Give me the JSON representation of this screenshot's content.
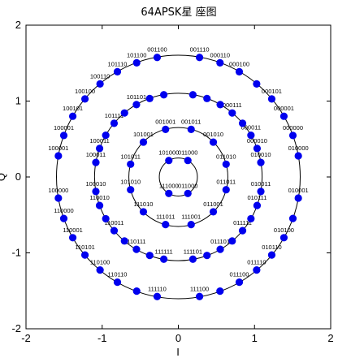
{
  "chart_data": {
    "type": "scatter",
    "title": "64APSK星 座图",
    "xlabel": "I",
    "ylabel": "Q",
    "xlim": [
      -2,
      2
    ],
    "ylim": [
      -2,
      2
    ],
    "xticks": [
      "-2",
      "-1",
      "0",
      "1",
      "2"
    ],
    "yticks": [
      "-2",
      "-1",
      "0",
      "1",
      "2"
    ],
    "grid": false,
    "marker_color": "#0000ee",
    "circle_color": "#000000",
    "rings": [
      {
        "radius": 0.25,
        "points": [
          {
            "x": 0.125,
            "y": 0.217,
            "label": "011000"
          },
          {
            "x": -0.125,
            "y": 0.217,
            "label": "101000"
          },
          {
            "x": -0.125,
            "y": -0.217,
            "label": "111000"
          },
          {
            "x": 0.125,
            "y": -0.217,
            "label": "011000"
          }
        ]
      },
      {
        "radius": 0.65,
        "points": [
          {
            "x": 0.627,
            "y": 0.168,
            "label": "011010"
          },
          {
            "x": 0.459,
            "y": 0.459,
            "label": "001010"
          },
          {
            "x": 0.168,
            "y": 0.627,
            "label": "001011"
          },
          {
            "x": -0.168,
            "y": 0.627,
            "label": "001001"
          },
          {
            "x": -0.459,
            "y": 0.459,
            "label": "101001"
          },
          {
            "x": -0.627,
            "y": 0.168,
            "label": "101011"
          },
          {
            "x": -0.627,
            "y": -0.168,
            "label": "101010"
          },
          {
            "x": -0.459,
            "y": -0.459,
            "label": "111010"
          },
          {
            "x": -0.168,
            "y": -0.627,
            "label": "111011"
          },
          {
            "x": 0.168,
            "y": -0.627,
            "label": "111001"
          },
          {
            "x": 0.459,
            "y": -0.459,
            "label": "011001"
          },
          {
            "x": 0.627,
            "y": -0.168,
            "label": "011011"
          }
        ]
      },
      {
        "radius": 1.1,
        "points": [
          {
            "x": 1.083,
            "y": 0.191,
            "label": "010010"
          },
          {
            "x": 1.034,
            "y": 0.376,
            "label": "000010"
          },
          {
            "x": 0.953,
            "y": 0.55,
            "label": "000011"
          },
          {
            "x": 0.843,
            "y": 0.707,
            "label": ""
          },
          {
            "x": 0.707,
            "y": 0.843,
            "label": "000111"
          },
          {
            "x": 0.55,
            "y": 0.953,
            "label": ""
          },
          {
            "x": 0.376,
            "y": 1.034,
            "label": ""
          },
          {
            "x": 0.191,
            "y": 1.083,
            "label": ""
          },
          {
            "x": -0.191,
            "y": 1.083,
            "label": ""
          },
          {
            "x": -0.376,
            "y": 1.034,
            "label": ""
          },
          {
            "x": -0.55,
            "y": 0.953,
            "label": "101101"
          },
          {
            "x": -0.707,
            "y": 0.843,
            "label": ""
          },
          {
            "x": -0.843,
            "y": 0.707,
            "label": "101111"
          },
          {
            "x": -0.953,
            "y": 0.55,
            "label": ""
          },
          {
            "x": -1.034,
            "y": 0.376,
            "label": "100011"
          },
          {
            "x": -1.083,
            "y": 0.191,
            "label": "100011"
          },
          {
            "x": -1.083,
            "y": -0.191,
            "label": "100010"
          },
          {
            "x": -1.034,
            "y": -0.376,
            "label": "110010"
          },
          {
            "x": -0.953,
            "y": -0.55,
            "label": ""
          },
          {
            "x": -0.843,
            "y": -0.707,
            "label": "110011"
          },
          {
            "x": -0.707,
            "y": -0.843,
            "label": ""
          },
          {
            "x": -0.55,
            "y": -0.953,
            "label": "110111"
          },
          {
            "x": -0.376,
            "y": -1.034,
            "label": ""
          },
          {
            "x": -0.191,
            "y": -1.083,
            "label": "111111"
          },
          {
            "x": 0.191,
            "y": -1.083,
            "label": "111101"
          },
          {
            "x": 0.376,
            "y": -1.034,
            "label": ""
          },
          {
            "x": 0.55,
            "y": -0.953,
            "label": "011101"
          },
          {
            "x": 0.707,
            "y": -0.843,
            "label": ""
          },
          {
            "x": 0.843,
            "y": -0.707,
            "label": "011111"
          },
          {
            "x": 0.953,
            "y": -0.55,
            "label": ""
          },
          {
            "x": 1.034,
            "y": -0.376,
            "label": "010111"
          },
          {
            "x": 1.083,
            "y": -0.191,
            "label": "010011"
          }
        ]
      },
      {
        "radius": 1.6,
        "points": [
          {
            "x": 1.575,
            "y": 0.278,
            "label": "010000"
          },
          {
            "x": 1.504,
            "y": 0.547,
            "label": "000000"
          },
          {
            "x": 1.386,
            "y": 0.8,
            "label": "000001"
          },
          {
            "x": 1.226,
            "y": 1.028,
            "label": "000101"
          },
          {
            "x": 1.028,
            "y": 1.226,
            "label": ""
          },
          {
            "x": 0.8,
            "y": 1.386,
            "label": "000100"
          },
          {
            "x": 0.547,
            "y": 1.504,
            "label": "000110"
          },
          {
            "x": 0.278,
            "y": 1.575,
            "label": "001110"
          },
          {
            "x": -0.278,
            "y": 1.575,
            "label": "001100"
          },
          {
            "x": -0.547,
            "y": 1.504,
            "label": "101100"
          },
          {
            "x": -0.8,
            "y": 1.386,
            "label": "101110"
          },
          {
            "x": -1.028,
            "y": 1.226,
            "label": "100110"
          },
          {
            "x": -1.226,
            "y": 1.028,
            "label": "100100"
          },
          {
            "x": -1.386,
            "y": 0.8,
            "label": "100101"
          },
          {
            "x": -1.504,
            "y": 0.547,
            "label": "100001"
          },
          {
            "x": -1.575,
            "y": 0.278,
            "label": "100001"
          },
          {
            "x": -1.575,
            "y": -0.278,
            "label": "100000"
          },
          {
            "x": -1.504,
            "y": -0.547,
            "label": "110000"
          },
          {
            "x": -1.386,
            "y": -0.8,
            "label": "110001"
          },
          {
            "x": -1.226,
            "y": -1.028,
            "label": "110101"
          },
          {
            "x": -1.028,
            "y": -1.226,
            "label": "110100"
          },
          {
            "x": -0.8,
            "y": -1.386,
            "label": "110110"
          },
          {
            "x": -0.547,
            "y": -1.504,
            "label": ""
          },
          {
            "x": -0.278,
            "y": -1.575,
            "label": "111110"
          },
          {
            "x": 0.278,
            "y": -1.575,
            "label": "111100"
          },
          {
            "x": 0.547,
            "y": -1.504,
            "label": ""
          },
          {
            "x": 0.8,
            "y": -1.386,
            "label": "011100"
          },
          {
            "x": 1.028,
            "y": -1.226,
            "label": "011110"
          },
          {
            "x": 1.226,
            "y": -1.028,
            "label": "010110"
          },
          {
            "x": 1.386,
            "y": -0.8,
            "label": "010100"
          },
          {
            "x": 1.504,
            "y": -0.547,
            "label": ""
          },
          {
            "x": 1.575,
            "y": -0.278,
            "label": "010001"
          }
        ]
      }
    ]
  }
}
